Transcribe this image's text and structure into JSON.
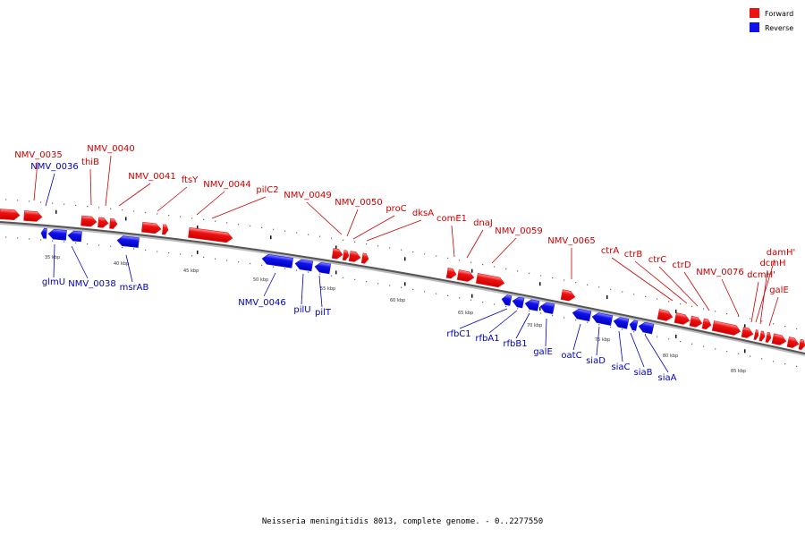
{
  "caption": "Neisseria meningitidis 8013, complete genome. - 0..2277550",
  "legend": [
    {
      "label": "Forward",
      "color": "#ee1111"
    },
    {
      "label": "Reverse",
      "color": "#1111ee"
    }
  ],
  "strand_colors": {
    "forward": "#ee1111",
    "forward_light": "#ff8888",
    "reverse": "#1111ee",
    "reverse_light": "#7777ff",
    "forward_label": "#cc0000",
    "reverse_label": "#0000bb"
  },
  "ticks": [
    "35 kbp",
    "40 kbp",
    "45 kbp",
    "50 kbp",
    "55 kbp",
    "60 kbp",
    "65 kbp",
    "70 kbp",
    "75 kbp",
    "80 kbp",
    "85 kbp"
  ],
  "forward_genes": [
    "NMV_0035",
    "thiB",
    "NMV_0040",
    "NMV_0041",
    "ftsY",
    "NMV_0044",
    "pilC2",
    "NMV_0049",
    "NMV_0050",
    "proC",
    "dksA",
    "comE1",
    "dnaJ",
    "NMV_0059",
    "NMV_0065",
    "ctrA",
    "ctrB",
    "ctrC",
    "ctrD",
    "NMV_0076",
    "damH'",
    "dcmH",
    "dcmH'",
    "galE"
  ],
  "reverse_genes": [
    "NMV_0036",
    "glmU",
    "NMV_0038",
    "msrAB",
    "NMV_0046",
    "pilU",
    "pilT",
    "rfbC1",
    "rfbA1",
    "rfbB1",
    "galE",
    "oatC",
    "siaD",
    "siaC",
    "siaB",
    "siaA"
  ]
}
